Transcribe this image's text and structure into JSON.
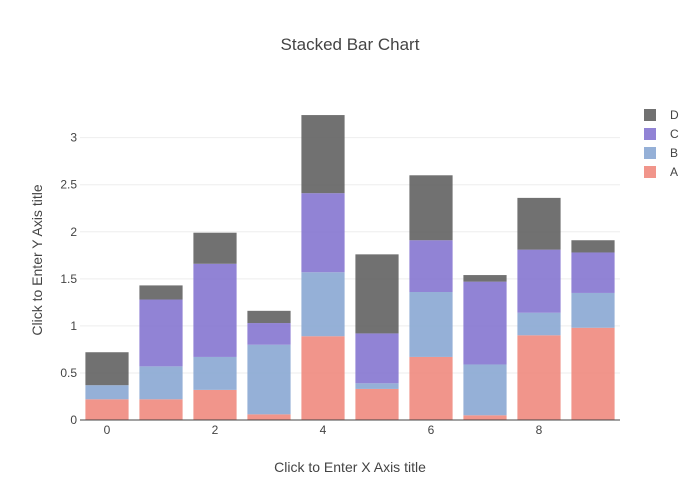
{
  "chart_data": {
    "type": "bar",
    "barmode": "stack",
    "title": "Stacked Bar Chart",
    "xlabel": "Click to Enter X Axis title",
    "ylabel": "Click to Enter Y Axis title",
    "x": [
      0,
      1,
      2,
      3,
      4,
      5,
      6,
      7,
      8,
      9
    ],
    "x_tick_labels": [
      "0",
      "2",
      "4",
      "6",
      "8"
    ],
    "x_tick_values": [
      0,
      2,
      4,
      6,
      8
    ],
    "y_tick_labels": [
      "0",
      "0.5",
      "1",
      "1.5",
      "2",
      "2.5",
      "3"
    ],
    "y_tick_values": [
      0,
      0.5,
      1,
      1.5,
      2,
      2.5,
      3
    ],
    "ylim": [
      0,
      3.4
    ],
    "xlim": [
      -0.5,
      9.5
    ],
    "grid": true,
    "legend_position": "right",
    "series": [
      {
        "name": "A",
        "color": "#ef8a7e",
        "values": [
          0.22,
          0.22,
          0.32,
          0.06,
          0.89,
          0.33,
          0.67,
          0.05,
          0.9,
          0.98
        ]
      },
      {
        "name": "B",
        "color": "#89a7d3",
        "values": [
          0.15,
          0.35,
          0.35,
          0.74,
          0.68,
          0.06,
          0.69,
          0.54,
          0.24,
          0.37
        ]
      },
      {
        "name": "C",
        "color": "#8575d0",
        "values": [
          0.0,
          0.71,
          0.99,
          0.23,
          0.84,
          0.53,
          0.55,
          0.88,
          0.67,
          0.43
        ]
      },
      {
        "name": "D",
        "color": "#626262",
        "values": [
          0.35,
          0.15,
          0.33,
          0.13,
          0.83,
          0.84,
          0.69,
          0.07,
          0.55,
          0.13
        ]
      }
    ]
  }
}
